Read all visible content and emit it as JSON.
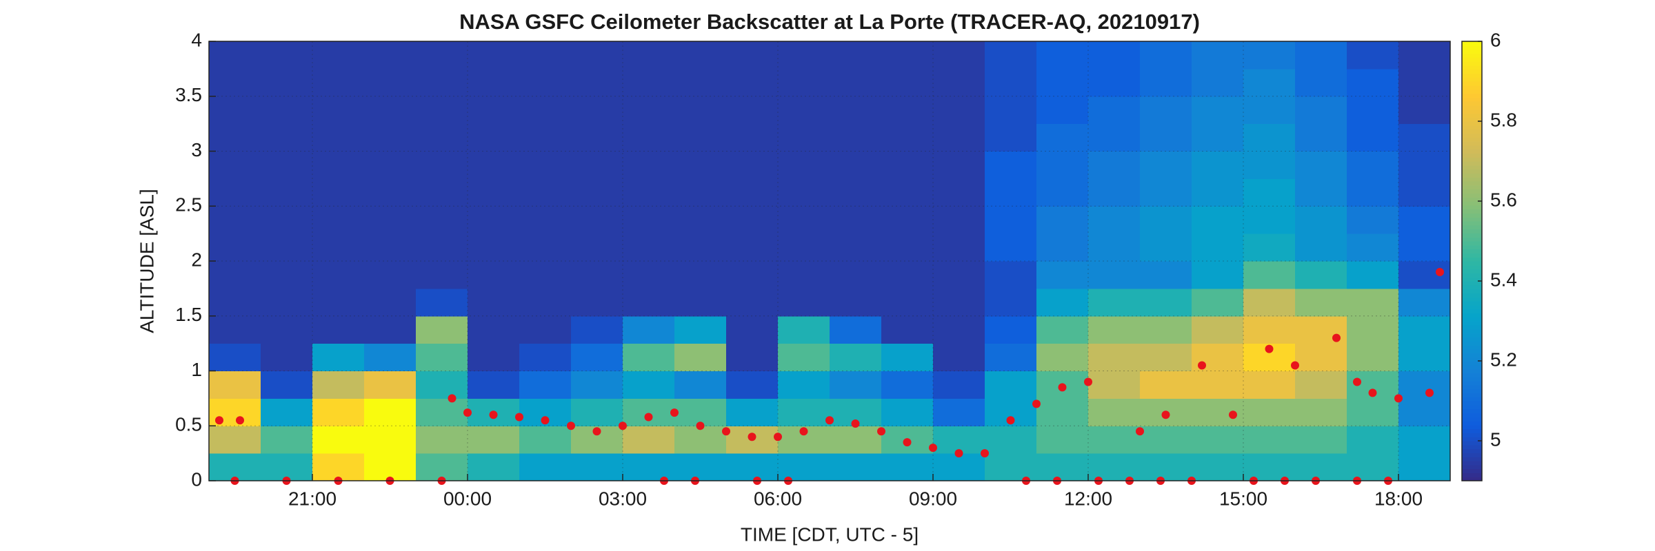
{
  "chart_data": {
    "type": "heatmap",
    "title": "NASA GSFC Ceilometer Backscatter at La Porte (TRACER-AQ, 20210917)",
    "x_label": "TIME [CDT, UTC - 5]",
    "y_label": "ALTITUDE [ASL]",
    "xlim": [
      19,
      43
    ],
    "xticks": [
      {
        "value": 21,
        "label": "21:00"
      },
      {
        "value": 24,
        "label": "00:00"
      },
      {
        "value": 27,
        "label": "03:00"
      },
      {
        "value": 30,
        "label": "06:00"
      },
      {
        "value": 33,
        "label": "09:00"
      },
      {
        "value": 36,
        "label": "12:00"
      },
      {
        "value": 39,
        "label": "15:00"
      },
      {
        "value": 42,
        "label": "18:00"
      }
    ],
    "ylim": [
      0,
      4
    ],
    "yticks": [
      0,
      0.5,
      1,
      1.5,
      2,
      2.5,
      3,
      3.5,
      4
    ],
    "zlim": [
      4.9,
      6
    ],
    "zticks": [
      5,
      5.2,
      5.4,
      5.6,
      5.8,
      6
    ],
    "grid": true,
    "x": [
      19.5,
      20.5,
      21.5,
      22.5,
      23.5,
      24.5,
      25.5,
      26.5,
      27.5,
      28.5,
      29.5,
      30.5,
      31.5,
      32.5,
      33.5,
      34.5,
      35.5,
      36.5,
      37.5,
      38.5,
      39.5,
      40.5,
      41.5,
      42.5
    ],
    "y": [
      0.125,
      0.375,
      0.625,
      0.875,
      1.125,
      1.375,
      1.625,
      1.875,
      2.125,
      2.375,
      2.625,
      2.875,
      3.125,
      3.375,
      3.625,
      3.875
    ],
    "z": [
      [
        5.4,
        5.7,
        5.9,
        5.8,
        5.0,
        4.95,
        4.95,
        4.95,
        4.95,
        4.95,
        4.95,
        4.95,
        4.95,
        4.95,
        4.95,
        4.95
      ],
      [
        5.4,
        5.5,
        5.3,
        5.0,
        4.95,
        4.95,
        4.95,
        4.95,
        4.95,
        4.95,
        4.95,
        4.95,
        4.95,
        4.95,
        4.95,
        4.95
      ],
      [
        5.9,
        6,
        5.9,
        5.7,
        5.3,
        4.95,
        4.95,
        4.95,
        4.95,
        4.95,
        4.95,
        4.95,
        4.95,
        4.95,
        4.95,
        4.95
      ],
      [
        6,
        6,
        6,
        5.8,
        5.2,
        4.95,
        4.95,
        4.95,
        4.95,
        4.95,
        4.95,
        4.95,
        4.95,
        4.95,
        4.95,
        4.95
      ],
      [
        5.5,
        5.6,
        5.5,
        5.4,
        5.5,
        5.6,
        5.0,
        4.95,
        4.95,
        4.95,
        4.95,
        4.95,
        4.95,
        4.95,
        4.95,
        4.95
      ],
      [
        5.4,
        5.6,
        5.4,
        5.0,
        4.95,
        4.95,
        4.95,
        4.95,
        4.95,
        4.95,
        4.95,
        4.95,
        4.95,
        4.95,
        4.95,
        4.95
      ],
      [
        5.3,
        5.5,
        5.3,
        5.1,
        5.0,
        4.95,
        4.95,
        4.95,
        4.95,
        4.95,
        4.95,
        4.95,
        4.95,
        4.95,
        4.95,
        4.95
      ],
      [
        5.3,
        5.6,
        5.4,
        5.2,
        5.1,
        5.0,
        4.95,
        4.95,
        4.95,
        4.95,
        4.95,
        4.95,
        4.95,
        4.95,
        4.95,
        4.95
      ],
      [
        5.3,
        5.7,
        5.5,
        5.3,
        5.5,
        5.2,
        4.95,
        4.95,
        4.95,
        4.95,
        4.95,
        4.95,
        4.95,
        4.95,
        4.95,
        4.95
      ],
      [
        5.3,
        5.6,
        5.5,
        5.2,
        5.6,
        5.3,
        4.95,
        4.95,
        4.95,
        4.95,
        4.95,
        4.95,
        4.95,
        4.95,
        4.95,
        4.95
      ],
      [
        5.3,
        5.7,
        5.3,
        5.0,
        4.95,
        4.95,
        4.95,
        4.95,
        4.95,
        4.95,
        4.95,
        4.95,
        4.95,
        4.95,
        4.95,
        4.95
      ],
      [
        5.3,
        5.6,
        5.4,
        5.3,
        5.5,
        5.4,
        4.95,
        4.95,
        4.95,
        4.95,
        4.95,
        4.95,
        4.95,
        4.95,
        4.95,
        4.95
      ],
      [
        5.3,
        5.6,
        5.4,
        5.2,
        5.4,
        5.1,
        4.95,
        4.95,
        4.95,
        4.95,
        4.95,
        4.95,
        4.95,
        4.95,
        4.95,
        4.95
      ],
      [
        5.3,
        5.5,
        5.3,
        5.1,
        5.3,
        4.95,
        4.95,
        4.95,
        4.95,
        4.95,
        4.95,
        4.95,
        4.95,
        4.95,
        4.95,
        4.95
      ],
      [
        5.3,
        5.4,
        5.1,
        5.0,
        4.95,
        4.95,
        4.95,
        4.95,
        4.95,
        4.95,
        4.95,
        4.95,
        4.95,
        4.95,
        4.95,
        4.95
      ],
      [
        5.4,
        5.4,
        5.3,
        5.3,
        5.1,
        5.05,
        5.0,
        5.0,
        5.05,
        5.05,
        5.05,
        5.05,
        5.0,
        5.0,
        5.0,
        5.0
      ],
      [
        5.4,
        5.5,
        5.5,
        5.5,
        5.6,
        5.5,
        5.3,
        5.2,
        5.15,
        5.15,
        5.1,
        5.1,
        5.1,
        5.05,
        5.05,
        5.05
      ],
      [
        5.4,
        5.5,
        5.6,
        5.7,
        5.7,
        5.6,
        5.4,
        5.2,
        5.2,
        5.2,
        5.15,
        5.15,
        5.1,
        5.1,
        5.05,
        5.05
      ],
      [
        5.4,
        5.5,
        5.6,
        5.8,
        5.7,
        5.6,
        5.4,
        5.2,
        5.25,
        5.25,
        5.2,
        5.2,
        5.15,
        5.15,
        5.1,
        5.1
      ],
      [
        5.4,
        5.5,
        5.6,
        5.8,
        5.8,
        5.7,
        5.5,
        5.3,
        5.3,
        5.3,
        5.25,
        5.25,
        5.2,
        5.2,
        5.15,
        5.15
      ],
      [
        5.4,
        5.5,
        5.6,
        5.8,
        5.9,
        5.8,
        5.7,
        5.5,
        5.35,
        5.3,
        5.3,
        5.25,
        5.25,
        5.2,
        5.2,
        5.15
      ],
      [
        5.4,
        5.5,
        5.6,
        5.7,
        5.8,
        5.8,
        5.6,
        5.4,
        5.25,
        5.25,
        5.2,
        5.2,
        5.15,
        5.15,
        5.1,
        5.1
      ],
      [
        5.4,
        5.4,
        5.5,
        5.5,
        5.6,
        5.6,
        5.6,
        5.3,
        5.2,
        5.15,
        5.1,
        5.1,
        5.05,
        5.05,
        5.05,
        5.0
      ],
      [
        5.3,
        5.3,
        5.2,
        5.2,
        5.3,
        5.3,
        5.2,
        5.0,
        5.05,
        5.05,
        5.0,
        5.0,
        5.0,
        4.95,
        4.95,
        4.95
      ]
    ],
    "points": {
      "color": "#e8141c",
      "x": [
        19.2,
        19.6,
        23.7,
        24,
        24.5,
        25,
        25.5,
        26,
        26.5,
        27,
        27.5,
        28,
        28.5,
        29,
        29.5,
        30,
        30.5,
        31,
        31.5,
        32,
        32.5,
        33,
        33.5,
        34,
        34.5,
        35,
        35.5,
        36,
        37,
        37.5,
        38.2,
        38.8,
        39.5,
        40,
        40.8,
        41.2,
        41.5,
        42,
        42.6,
        42.8,
        19.5,
        20.5,
        21.5,
        22.5,
        23.5,
        27.8,
        28.4,
        29.6,
        30.2,
        34.8,
        35.4,
        36.2,
        36.8,
        37.4,
        38,
        39.2,
        39.8,
        40.4,
        41.2,
        41.8
      ],
      "y": [
        0.55,
        0.55,
        0.75,
        0.62,
        0.6,
        0.58,
        0.55,
        0.5,
        0.45,
        0.5,
        0.58,
        0.62,
        0.5,
        0.45,
        0.4,
        0.4,
        0.45,
        0.55,
        0.52,
        0.45,
        0.35,
        0.3,
        0.25,
        0.25,
        0.55,
        0.7,
        0.85,
        0.9,
        0.45,
        0.6,
        1.05,
        0.6,
        1.2,
        1.05,
        1.3,
        0.9,
        0.8,
        0.75,
        0.8,
        1.9,
        0,
        0,
        0,
        0,
        0,
        0,
        0,
        0,
        0,
        0,
        0,
        0,
        0,
        0,
        0,
        0,
        0,
        0,
        0,
        0
      ]
    }
  }
}
